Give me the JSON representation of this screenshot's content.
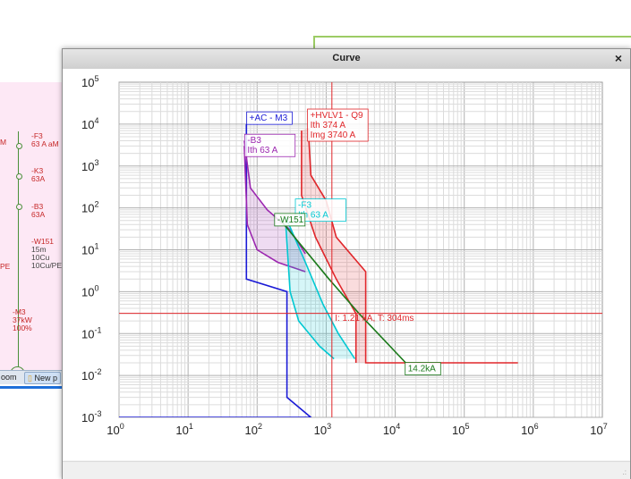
{
  "background": {
    "sld_labels": [
      {
        "text": "-F3",
        "color": "red"
      },
      {
        "text": "63 A aM",
        "color": "red"
      },
      {
        "text": "-K3",
        "color": "red"
      },
      {
        "text": "63A",
        "color": "red"
      },
      {
        "text": "-B3",
        "color": "red"
      },
      {
        "text": "63A",
        "color": "red"
      },
      {
        "text": "-W151",
        "color": "red"
      },
      {
        "text": "15m",
        "color": "dark"
      },
      {
        "text": "10Cu",
        "color": "dark"
      },
      {
        "text": "10Cu/PE",
        "color": "dark"
      },
      {
        "text": "-M3",
        "color": "red"
      },
      {
        "text": "37kW",
        "color": "red"
      },
      {
        "text": "100%",
        "color": "red"
      }
    ],
    "edge_letters": {
      "m": "M",
      "pe": "PE"
    },
    "motor_symbol": "M",
    "taskbar": {
      "zoom_label": "oom",
      "new_label": "New p"
    }
  },
  "dialog": {
    "title": "Curve",
    "close_label": "×",
    "grip": ".:"
  },
  "chart_data": {
    "type": "line",
    "x_scale": "log",
    "y_scale": "log",
    "xlim": [
      1,
      10000000
    ],
    "ylim": [
      0.001,
      100000
    ],
    "grid": true,
    "x_ticks": [
      {
        "base": "10",
        "exp": "0"
      },
      {
        "base": "10",
        "exp": "1"
      },
      {
        "base": "10",
        "exp": "2"
      },
      {
        "base": "10",
        "exp": "3"
      },
      {
        "base": "10",
        "exp": "4"
      },
      {
        "base": "10",
        "exp": "5"
      },
      {
        "base": "10",
        "exp": "6"
      },
      {
        "base": "10",
        "exp": "7"
      }
    ],
    "y_ticks": [
      {
        "base": "10",
        "exp": "-3"
      },
      {
        "base": "10",
        "exp": "-2"
      },
      {
        "base": "10",
        "exp": "-1"
      },
      {
        "base": "10",
        "exp": "0"
      },
      {
        "base": "10",
        "exp": "1"
      },
      {
        "base": "10",
        "exp": "2"
      },
      {
        "base": "10",
        "exp": "3"
      },
      {
        "base": "10",
        "exp": "4"
      },
      {
        "base": "10",
        "exp": "5"
      }
    ],
    "colors": {
      "blue": "#1a1ad6",
      "purple": "#9c27b0",
      "cyan": "#00c8d2",
      "red": "#e0262a",
      "green": "#1b7a1b"
    },
    "series": [
      {
        "color": "blue",
        "fill": false,
        "lines": [
          [
            [
              70,
              10000
            ],
            [
              70,
              2
            ],
            [
              270,
              1
            ],
            [
              270,
              0.003
            ],
            [
              600,
              0.001
            ],
            [
              1,
              0.001
            ]
          ]
        ]
      },
      {
        "color": "purple",
        "fill": true,
        "lines": [
          [
            [
              65,
              4000
            ],
            [
              80,
              300
            ],
            [
              140,
              90
            ],
            [
              300,
              30
            ],
            [
              500,
              8
            ]
          ],
          [
            [
              65,
              3000
            ],
            [
              72,
              40
            ],
            [
              100,
              10
            ],
            [
              200,
              5
            ],
            [
              500,
              3
            ]
          ]
        ]
      },
      {
        "color": "cyan",
        "fill": true,
        "lines": [
          [
            [
              260,
              60
            ],
            [
              500,
              5
            ],
            [
              900,
              0.5
            ],
            [
              1500,
              0.1
            ],
            [
              2600,
              0.025
            ]
          ],
          [
            [
              260,
              40
            ],
            [
              300,
              1
            ],
            [
              400,
              0.2
            ],
            [
              800,
              0.05
            ],
            [
              1300,
              0.025
            ]
          ]
        ]
      },
      {
        "color": "red",
        "fill": true,
        "lines": [
          [
            [
              550,
              8000
            ],
            [
              600,
              600
            ],
            [
              1000,
              150
            ],
            [
              1400,
              20
            ],
            [
              3740,
              3
            ],
            [
              3740,
              0.02
            ],
            [
              600000,
              0.02
            ]
          ],
          [
            [
              440,
              7000
            ],
            [
              440,
              200
            ],
            [
              700,
              20
            ],
            [
              1400,
              2
            ],
            [
              2700,
              0.3
            ],
            [
              2700,
              0.02
            ]
          ]
        ]
      },
      {
        "color": "green",
        "fill": false,
        "lines": [
          [
            [
              220,
              50
            ],
            [
              1100,
              2
            ],
            [
              3000,
              0.3
            ],
            [
              14200,
              0.02
            ]
          ]
        ]
      }
    ],
    "crosshair": {
      "x": 1210,
      "y": 0.304
    },
    "annotations": [
      {
        "lines": [
          "+AC - M3"
        ],
        "x": 75,
        "y": 12000,
        "color": "blue"
      },
      {
        "lines": [
          "-B3",
          "Ith  63 A"
        ],
        "x": 70,
        "y": 3500,
        "color": "purple"
      },
      {
        "lines": [
          "+HVLV1 - Q9",
          "Ith  374 A",
          "Img  3740 A"
        ],
        "x": 570,
        "y": 14000,
        "color": "red"
      },
      {
        "lines": [
          "-F3",
          "Ith  63 A"
        ],
        "x": 380,
        "y": 100,
        "color": "cyan"
      },
      {
        "lines": [
          "-W151"
        ],
        "x": 190,
        "y": 45,
        "color": "green"
      },
      {
        "lines": [
          "I: 1.21 kA, T: 304ms"
        ],
        "x": 1300,
        "y": 0.2,
        "color": "red",
        "plain": true
      },
      {
        "lines": [
          "14.2kA"
        ],
        "x": 14800,
        "y": 0.0125,
        "color": "green"
      }
    ]
  }
}
